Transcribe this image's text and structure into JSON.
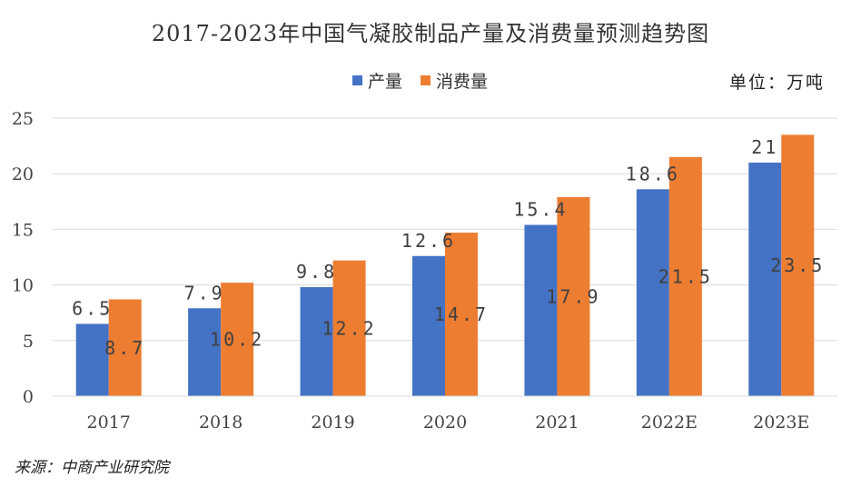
{
  "chart_data": {
    "type": "bar",
    "title": "2017-2023年中国气凝胶制品产量及消费量预测趋势图",
    "unit_label": "单位：万吨",
    "categories": [
      "2017",
      "2018",
      "2019",
      "2020",
      "2021",
      "2022E",
      "2023E"
    ],
    "series": [
      {
        "name": "产量",
        "color": "#4472C4",
        "values": [
          6.5,
          7.9,
          9.8,
          12.6,
          15.4,
          18.6,
          21
        ],
        "labels": [
          "6.5",
          "7.9",
          "9.8",
          "12.6",
          "15.4",
          "18.6",
          "21"
        ]
      },
      {
        "name": "消费量",
        "color": "#ED7D31",
        "values": [
          8.7,
          10.2,
          12.2,
          14.7,
          17.9,
          21.5,
          23.5
        ],
        "labels": [
          "8.7",
          "10.2",
          "12.2",
          "14.7",
          "17.9",
          "21.5",
          "23.5"
        ]
      }
    ],
    "ylim": [
      0,
      25
    ],
    "yticks": [
      "0",
      "5",
      "10",
      "15",
      "20",
      "25"
    ],
    "grid": true,
    "legend_position": "top-center",
    "source": "来源：中商产业研究院"
  }
}
